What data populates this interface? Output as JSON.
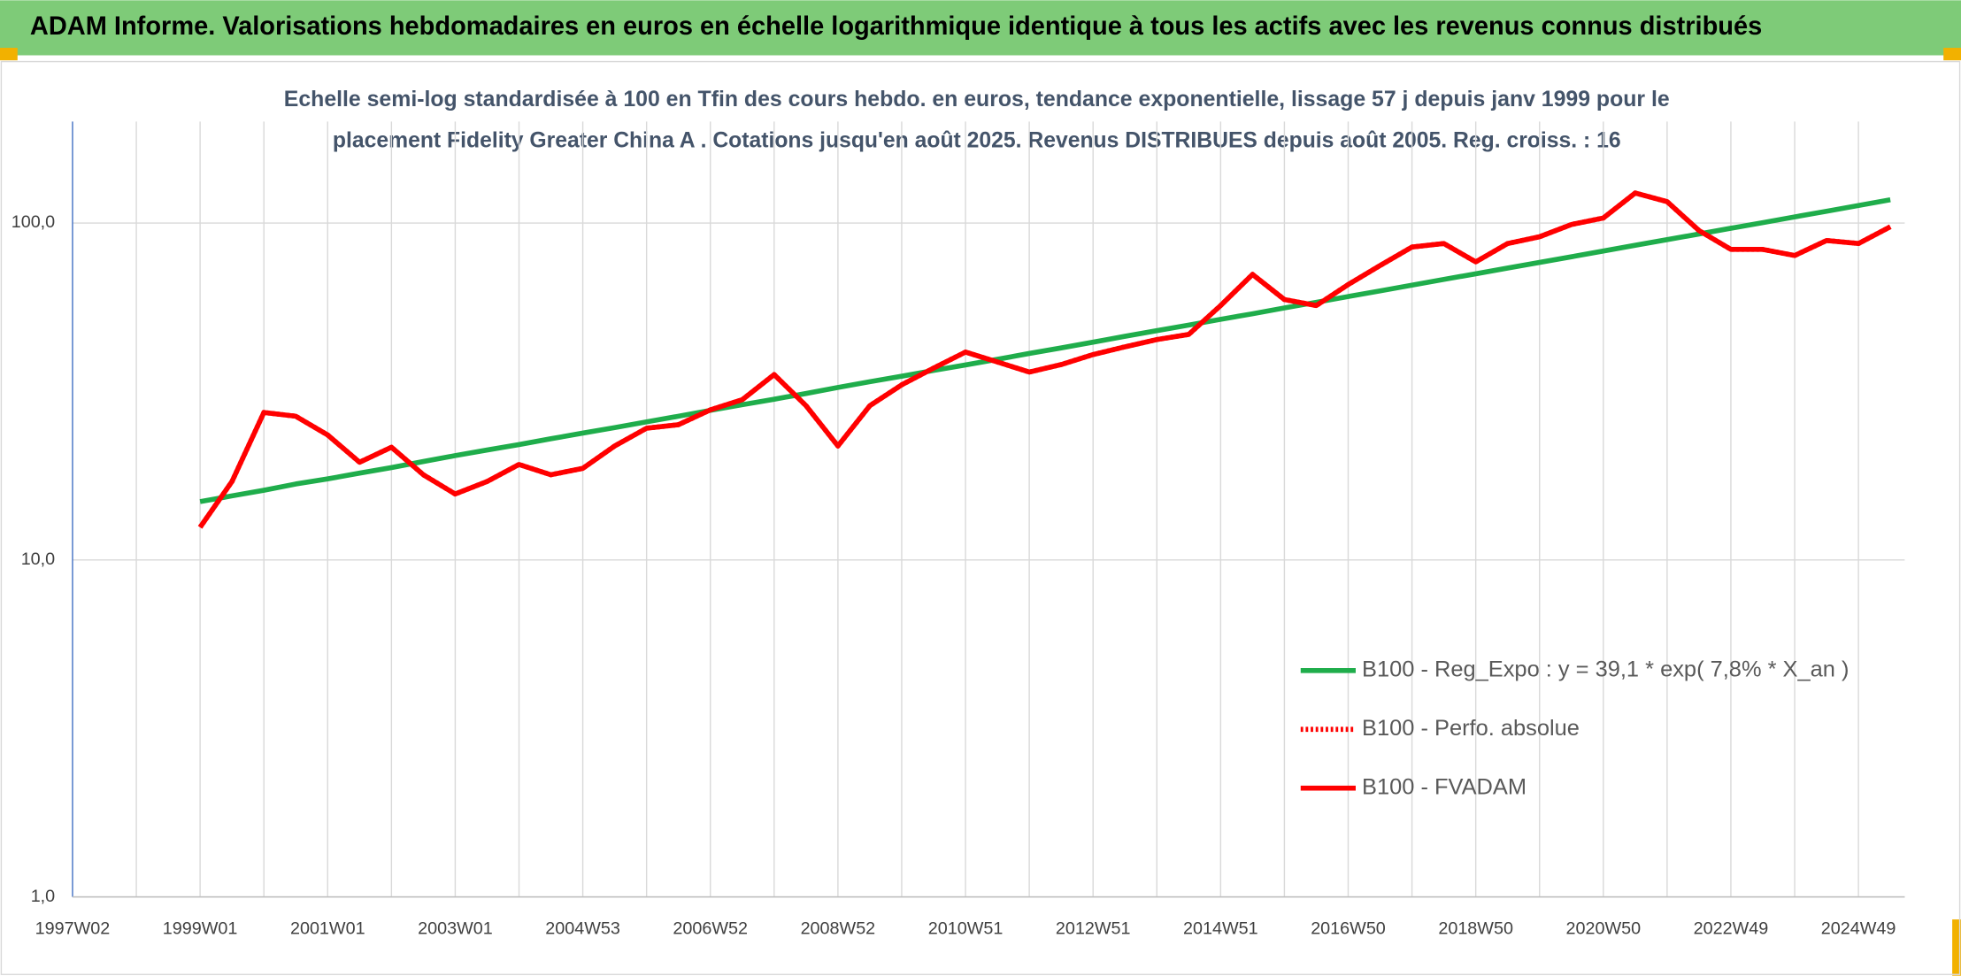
{
  "chart_data": {
    "type": "line",
    "title": "ADAM Informe. Valorisations hebdomadaires en euros en échelle logarithmique identique à tous les actifs avec les revenus connus distribués",
    "subtitle": [
      "Echelle semi-log standardisée à 100 en Tfin des cours hebdo. en euros, tendance exponentielle, lissage 57 j depuis janv 1999 pour le",
      "placement Fidelity Greater China A . Cotations jusqu'en août 2025. Revenus DISTRIBUES depuis août 2005. Reg. croiss. : 16"
    ],
    "categories": [
      "1997W02",
      null,
      null,
      null,
      "1999W01",
      null,
      null,
      null,
      "2001W01",
      null,
      null,
      null,
      "2003W01",
      null,
      null,
      null,
      "2004W53",
      null,
      null,
      null,
      "2006W52",
      null,
      null,
      null,
      "2008W52",
      null,
      null,
      null,
      "2010W51",
      null,
      null,
      null,
      "2012W51",
      null,
      null,
      null,
      "2014W51",
      null,
      null,
      null,
      "2016W50",
      null,
      null,
      null,
      "2018W50",
      null,
      null,
      null,
      "2020W50",
      null,
      null,
      null,
      "2022W49",
      null,
      null,
      null,
      "2024W49",
      null
    ],
    "series": [
      {
        "name": "B100 - Reg_Expo : y = 39,1 * exp( 7,8% *  X_an )",
        "color": "#1fad4b",
        "dash": "solid",
        "values": [
          null,
          null,
          null,
          null,
          14.9,
          15.5,
          16.1,
          16.8,
          17.4,
          18.1,
          18.8,
          19.6,
          20.4,
          21.2,
          22.0,
          22.9,
          23.8,
          24.7,
          25.7,
          26.7,
          27.8,
          28.9,
          30.0,
          31.2,
          32.5,
          33.8,
          35.1,
          36.5,
          37.9,
          39.4,
          41.0,
          42.6,
          44.3,
          46.1,
          47.9,
          49.8,
          51.8,
          53.8,
          56.0,
          58.2,
          60.5,
          62.9,
          65.4,
          68.0,
          70.7,
          73.5,
          76.4,
          79.4,
          82.6,
          85.9,
          89.3,
          92.8,
          96.5,
          100.3,
          104.3,
          108.4,
          112.7,
          117.2
        ]
      },
      {
        "name": "B100 - Perfo. absolue",
        "color": "#ff0000",
        "dash": "dotted",
        "values": [
          null,
          null,
          null,
          null,
          12.5,
          17.1,
          27.4,
          26.7,
          23.5,
          19.5,
          21.6,
          17.9,
          15.7,
          17.1,
          19.2,
          17.9,
          18.7,
          21.8,
          24.6,
          25.2,
          27.9,
          29.9,
          35.5,
          28.7,
          21.8,
          28.7,
          33.1,
          37.1,
          41.4,
          38.7,
          36.1,
          38.0,
          40.7,
          42.9,
          45.1,
          46.7,
          56.9,
          70.4,
          59.3,
          56.9,
          65.7,
          74.8,
          84.9,
          86.9,
          76.7,
          86.9,
          91.0,
          99.0,
          103.5,
          122.8,
          115.7,
          95.0,
          83.5,
          83.5,
          80.1,
          88.7,
          86.9,
          97.5
        ]
      },
      {
        "name": "B100 - FVADAM",
        "color": "#ff0000",
        "dash": "solid",
        "values": [
          null,
          null,
          null,
          null,
          12.5,
          17.1,
          27.4,
          26.7,
          23.5,
          19.5,
          21.6,
          17.9,
          15.7,
          17.1,
          19.2,
          17.9,
          18.7,
          21.8,
          24.6,
          25.2,
          27.9,
          29.9,
          35.5,
          28.7,
          21.8,
          28.7,
          33.1,
          37.1,
          41.4,
          38.7,
          36.1,
          38.0,
          40.7,
          42.9,
          45.1,
          46.7,
          56.9,
          70.4,
          59.3,
          56.9,
          65.7,
          74.8,
          84.9,
          86.9,
          76.7,
          86.9,
          91.0,
          99.0,
          103.5,
          122.8,
          115.7,
          95.0,
          83.5,
          83.5,
          80.1,
          88.7,
          86.9,
          97.5
        ]
      }
    ],
    "ylim": [
      1,
      200
    ],
    "yticks": [
      {
        "value": 1,
        "label": "1,0"
      },
      {
        "value": 10,
        "label": "10,0"
      },
      {
        "value": 100,
        "label": "100,0"
      }
    ],
    "log_scale": true,
    "grid": true,
    "legend": "lower right"
  }
}
